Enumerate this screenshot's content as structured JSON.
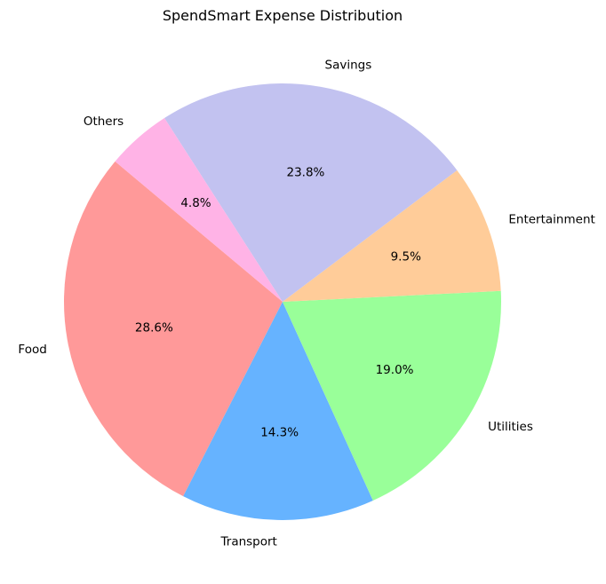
{
  "chart_data": {
    "type": "pie",
    "title": "SpendSmart Expense Distribution",
    "categories": [
      "Food",
      "Transport",
      "Utilities",
      "Entertainment",
      "Savings",
      "Others"
    ],
    "values": [
      28.6,
      14.3,
      19.0,
      9.5,
      23.8,
      4.8
    ],
    "percent_labels": [
      "28.6%",
      "14.3%",
      "19.0%",
      "9.5%",
      "23.8%",
      "4.8%"
    ],
    "colors": [
      "#ff9999",
      "#66b3ff",
      "#99ff99",
      "#ffcc99",
      "#c2c2f0",
      "#ffb3e6"
    ],
    "start_angle_deg": 140,
    "direction": "counterclockwise",
    "legend": "none"
  }
}
